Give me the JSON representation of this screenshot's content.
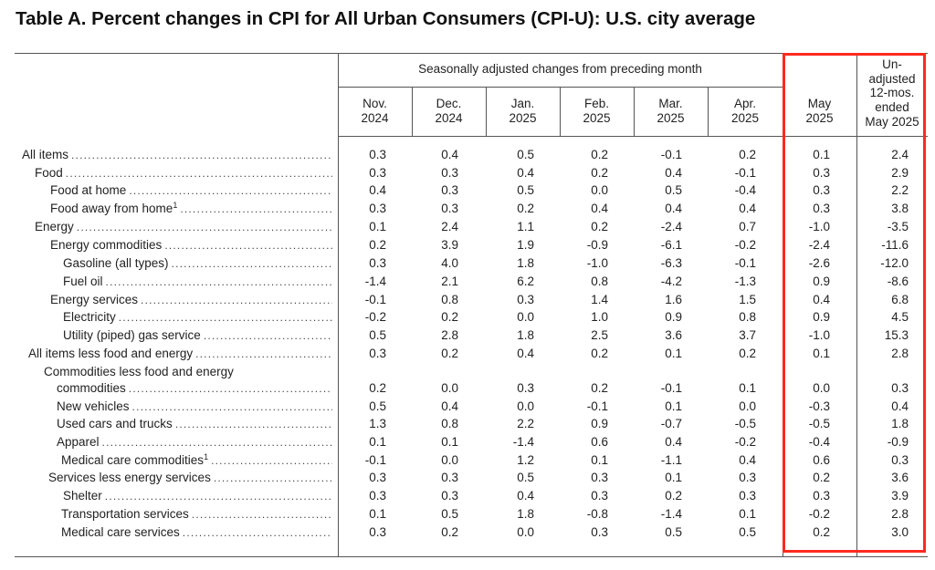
{
  "title": "Table A. Percent changes in CPI for All Urban Consumers (CPI-U): U.S. city average",
  "header": {
    "group_caption": "Seasonally adjusted changes from preceding month",
    "columns": [
      {
        "line1": "Nov.",
        "line2": "2024"
      },
      {
        "line1": "Dec.",
        "line2": "2024"
      },
      {
        "line1": "Jan.",
        "line2": "2025"
      },
      {
        "line1": "Feb.",
        "line2": "2025"
      },
      {
        "line1": "Mar.",
        "line2": "2025"
      },
      {
        "line1": "Apr.",
        "line2": "2025"
      },
      {
        "line1": "May",
        "line2": "2025"
      }
    ],
    "unadjusted": [
      "Un-",
      "adjusted",
      "12-mos.",
      "ended",
      "May 2025"
    ]
  },
  "rows": [
    {
      "label": "All items",
      "values": [
        "0.3",
        "0.4",
        "0.5",
        "0.2",
        "-0.1",
        "0.2",
        "0.1",
        "2.4"
      ]
    },
    {
      "label": "Food",
      "values": [
        "0.3",
        "0.3",
        "0.4",
        "0.2",
        "0.4",
        "-0.1",
        "0.3",
        "2.9"
      ]
    },
    {
      "label": "Food at home",
      "values": [
        "0.4",
        "0.3",
        "0.5",
        "0.0",
        "0.5",
        "-0.4",
        "0.3",
        "2.2"
      ]
    },
    {
      "label": "Food away from home",
      "sup": "1",
      "values": [
        "0.3",
        "0.3",
        "0.2",
        "0.4",
        "0.4",
        "0.4",
        "0.3",
        "3.8"
      ]
    },
    {
      "label": "Energy",
      "values": [
        "0.1",
        "2.4",
        "1.1",
        "0.2",
        "-2.4",
        "0.7",
        "-1.0",
        "-3.5"
      ]
    },
    {
      "label": "Energy commodities",
      "values": [
        "0.2",
        "3.9",
        "1.9",
        "-0.9",
        "-6.1",
        "-0.2",
        "-2.4",
        "-11.6"
      ]
    },
    {
      "label": "Gasoline (all types)",
      "values": [
        "0.3",
        "4.0",
        "1.8",
        "-1.0",
        "-6.3",
        "-0.1",
        "-2.6",
        "-12.0"
      ]
    },
    {
      "label": "Fuel oil",
      "values": [
        "-1.4",
        "2.1",
        "6.2",
        "0.8",
        "-4.2",
        "-1.3",
        "0.9",
        "-8.6"
      ]
    },
    {
      "label": "Energy services",
      "values": [
        "-0.1",
        "0.8",
        "0.3",
        "1.4",
        "1.6",
        "1.5",
        "0.4",
        "6.8"
      ]
    },
    {
      "label": "Electricity",
      "values": [
        "-0.2",
        "0.2",
        "0.0",
        "1.0",
        "0.9",
        "0.8",
        "0.9",
        "4.5"
      ]
    },
    {
      "label": "Utility (piped) gas service",
      "values": [
        "0.5",
        "2.8",
        "1.8",
        "2.5",
        "3.6",
        "3.7",
        "-1.0",
        "15.3"
      ]
    },
    {
      "label": "All items less food and energy",
      "values": [
        "0.3",
        "0.2",
        "0.4",
        "0.2",
        "0.1",
        "0.2",
        "0.1",
        "2.8"
      ]
    },
    {
      "label": "Commodities less food and energy",
      "label2": "commodities",
      "values": [
        "0.2",
        "0.0",
        "0.3",
        "0.2",
        "-0.1",
        "0.1",
        "0.0",
        "0.3"
      ]
    },
    {
      "label": "New vehicles",
      "values": [
        "0.5",
        "0.4",
        "0.0",
        "-0.1",
        "0.1",
        "0.0",
        "-0.3",
        "0.4"
      ]
    },
    {
      "label": "Used cars and trucks",
      "values": [
        "1.3",
        "0.8",
        "2.2",
        "0.9",
        "-0.7",
        "-0.5",
        "-0.5",
        "1.8"
      ]
    },
    {
      "label": "Apparel",
      "values": [
        "0.1",
        "0.1",
        "-1.4",
        "0.6",
        "0.4",
        "-0.2",
        "-0.4",
        "-0.9"
      ]
    },
    {
      "label": "Medical care commodities",
      "sup": "1",
      "values": [
        "-0.1",
        "0.0",
        "1.2",
        "0.1",
        "-1.1",
        "0.4",
        "0.6",
        "0.3"
      ]
    },
    {
      "label": "Services less energy services",
      "values": [
        "0.3",
        "0.3",
        "0.5",
        "0.3",
        "0.1",
        "0.3",
        "0.2",
        "3.6"
      ]
    },
    {
      "label": "Shelter",
      "values": [
        "0.3",
        "0.3",
        "0.4",
        "0.3",
        "0.2",
        "0.3",
        "0.3",
        "3.9"
      ]
    },
    {
      "label": "Transportation services",
      "values": [
        "0.1",
        "0.5",
        "1.8",
        "-0.8",
        "-1.4",
        "0.1",
        "-0.2",
        "2.8"
      ]
    },
    {
      "label": "Medical care services",
      "values": [
        "0.3",
        "0.2",
        "0.0",
        "0.3",
        "0.5",
        "0.5",
        "0.2",
        "3.0"
      ]
    }
  ]
}
